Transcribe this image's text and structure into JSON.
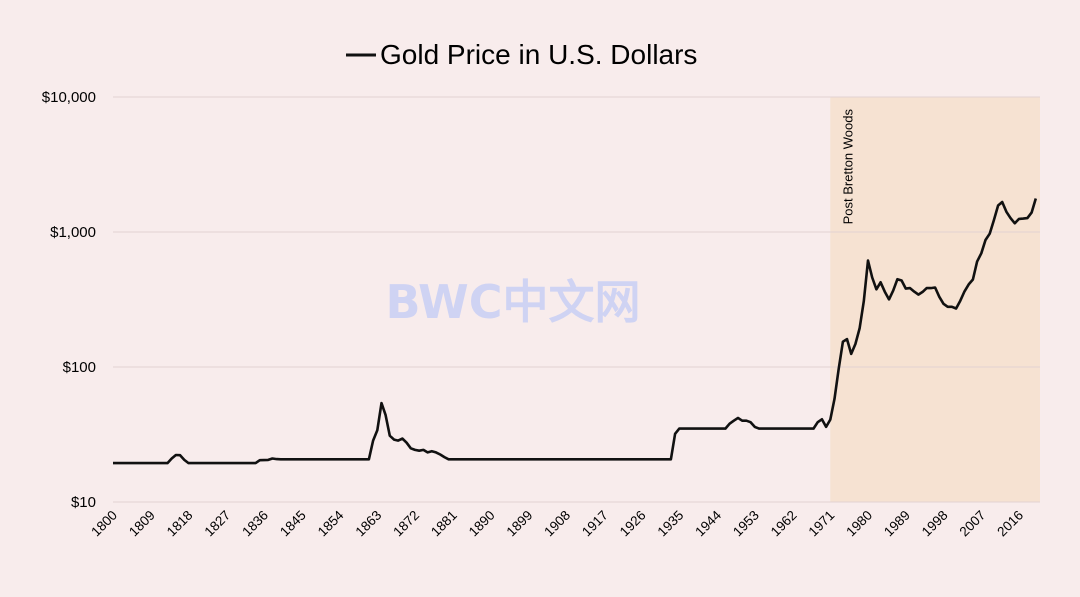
{
  "chart_data": {
    "type": "line",
    "title": "Gold Price in U.S. Dollars",
    "legend_placement": "top-center",
    "y_scale": "log",
    "ylim": [
      10,
      10000
    ],
    "xlim": [
      1800,
      2021
    ],
    "y_ticks": [
      {
        "value": 10,
        "label": "$10"
      },
      {
        "value": 100,
        "label": "$100"
      },
      {
        "value": 1000,
        "label": "$1,000"
      },
      {
        "value": 10000,
        "label": "$10,000"
      }
    ],
    "x_ticks": [
      1800,
      1809,
      1818,
      1827,
      1836,
      1845,
      1854,
      1863,
      1872,
      1881,
      1890,
      1899,
      1908,
      1917,
      1926,
      1935,
      1944,
      1953,
      1962,
      1971,
      1980,
      1989,
      1998,
      2007,
      2016
    ],
    "grid": "horizontal",
    "line_color": "#111111",
    "shaded_region": {
      "x_start": 1971,
      "x_end": 2021,
      "label": "Post Bretton Woods",
      "color": "#f6e2d2"
    },
    "series": [
      {
        "name": "Gold Price in U.S. Dollars",
        "x": [
          1800,
          1813,
          1814,
          1815,
          1816,
          1817,
          1818,
          1820,
          1830,
          1834,
          1835,
          1837,
          1838,
          1839,
          1840,
          1845,
          1850,
          1855,
          1860,
          1861,
          1862,
          1863,
          1864,
          1865,
          1866,
          1867,
          1868,
          1869,
          1870,
          1871,
          1872,
          1873,
          1874,
          1875,
          1876,
          1877,
          1878,
          1879,
          1880,
          1890,
          1900,
          1910,
          1920,
          1930,
          1933,
          1934,
          1935,
          1940,
          1941,
          1942,
          1943,
          1944,
          1945,
          1946,
          1947,
          1948,
          1949,
          1950,
          1951,
          1952,
          1953,
          1954,
          1955,
          1956,
          1958,
          1960,
          1961,
          1962,
          1963,
          1964,
          1965,
          1966,
          1967,
          1968,
          1969,
          1970,
          1971,
          1972,
          1973,
          1974,
          1975,
          1976,
          1977,
          1978,
          1979,
          1980,
          1981,
          1982,
          1983,
          1984,
          1985,
          1986,
          1987,
          1988,
          1989,
          1990,
          1991,
          1992,
          1993,
          1994,
          1995,
          1996,
          1997,
          1998,
          1999,
          2000,
          2001,
          2002,
          2003,
          2004,
          2005,
          2006,
          2007,
          2008,
          2009,
          2010,
          2011,
          2012,
          2013,
          2014,
          2015,
          2016,
          2017,
          2018,
          2019,
          2020
        ],
        "values": [
          19.4,
          19.4,
          21.0,
          22.3,
          22.2,
          20.5,
          19.4,
          19.4,
          19.4,
          19.4,
          20.4,
          20.5,
          21.0,
          20.8,
          20.7,
          20.7,
          20.7,
          20.7,
          20.7,
          20.7,
          28.5,
          34.0,
          54.0,
          44.0,
          31.0,
          29.0,
          28.5,
          29.5,
          27.5,
          25.0,
          24.3,
          24.0,
          24.3,
          23.3,
          23.8,
          23.3,
          22.5,
          21.5,
          20.7,
          20.7,
          20.7,
          20.7,
          20.7,
          20.7,
          20.7,
          32.0,
          35.0,
          35.0,
          35.0,
          35.0,
          35.0,
          35.0,
          35.0,
          35.0,
          38.0,
          40.0,
          42.0,
          40.0,
          40.0,
          39.0,
          36.0,
          35.0,
          35.0,
          35.0,
          35.0,
          35.0,
          35.0,
          35.0,
          35.0,
          35.0,
          35.0,
          35.0,
          35.0,
          39.0,
          41.0,
          36.0,
          40.8,
          58.0,
          97.0,
          154.0,
          161.0,
          125.0,
          148.0,
          193.0,
          307.0,
          615.0,
          460.0,
          376.0,
          424.0,
          361.0,
          317.0,
          368.0,
          447.0,
          437.0,
          381.0,
          384.0,
          362.0,
          344.0,
          360.0,
          384.0,
          384.0,
          388.0,
          331.0,
          294.0,
          279.0,
          279.0,
          271.0,
          310.0,
          363.0,
          409.0,
          445.0,
          604.0,
          695.0,
          872.0,
          972.0,
          1225.0,
          1572.0,
          1669.0,
          1411.0,
          1266.0,
          1160.0,
          1251.0,
          1257.0,
          1268.0,
          1393.0,
          1770.0
        ]
      }
    ]
  },
  "watermark": {
    "text": "BWC中文网",
    "color": "#c8cff5"
  },
  "colors": {
    "background": "#f8ecec",
    "grid": "#e2d2d2"
  }
}
